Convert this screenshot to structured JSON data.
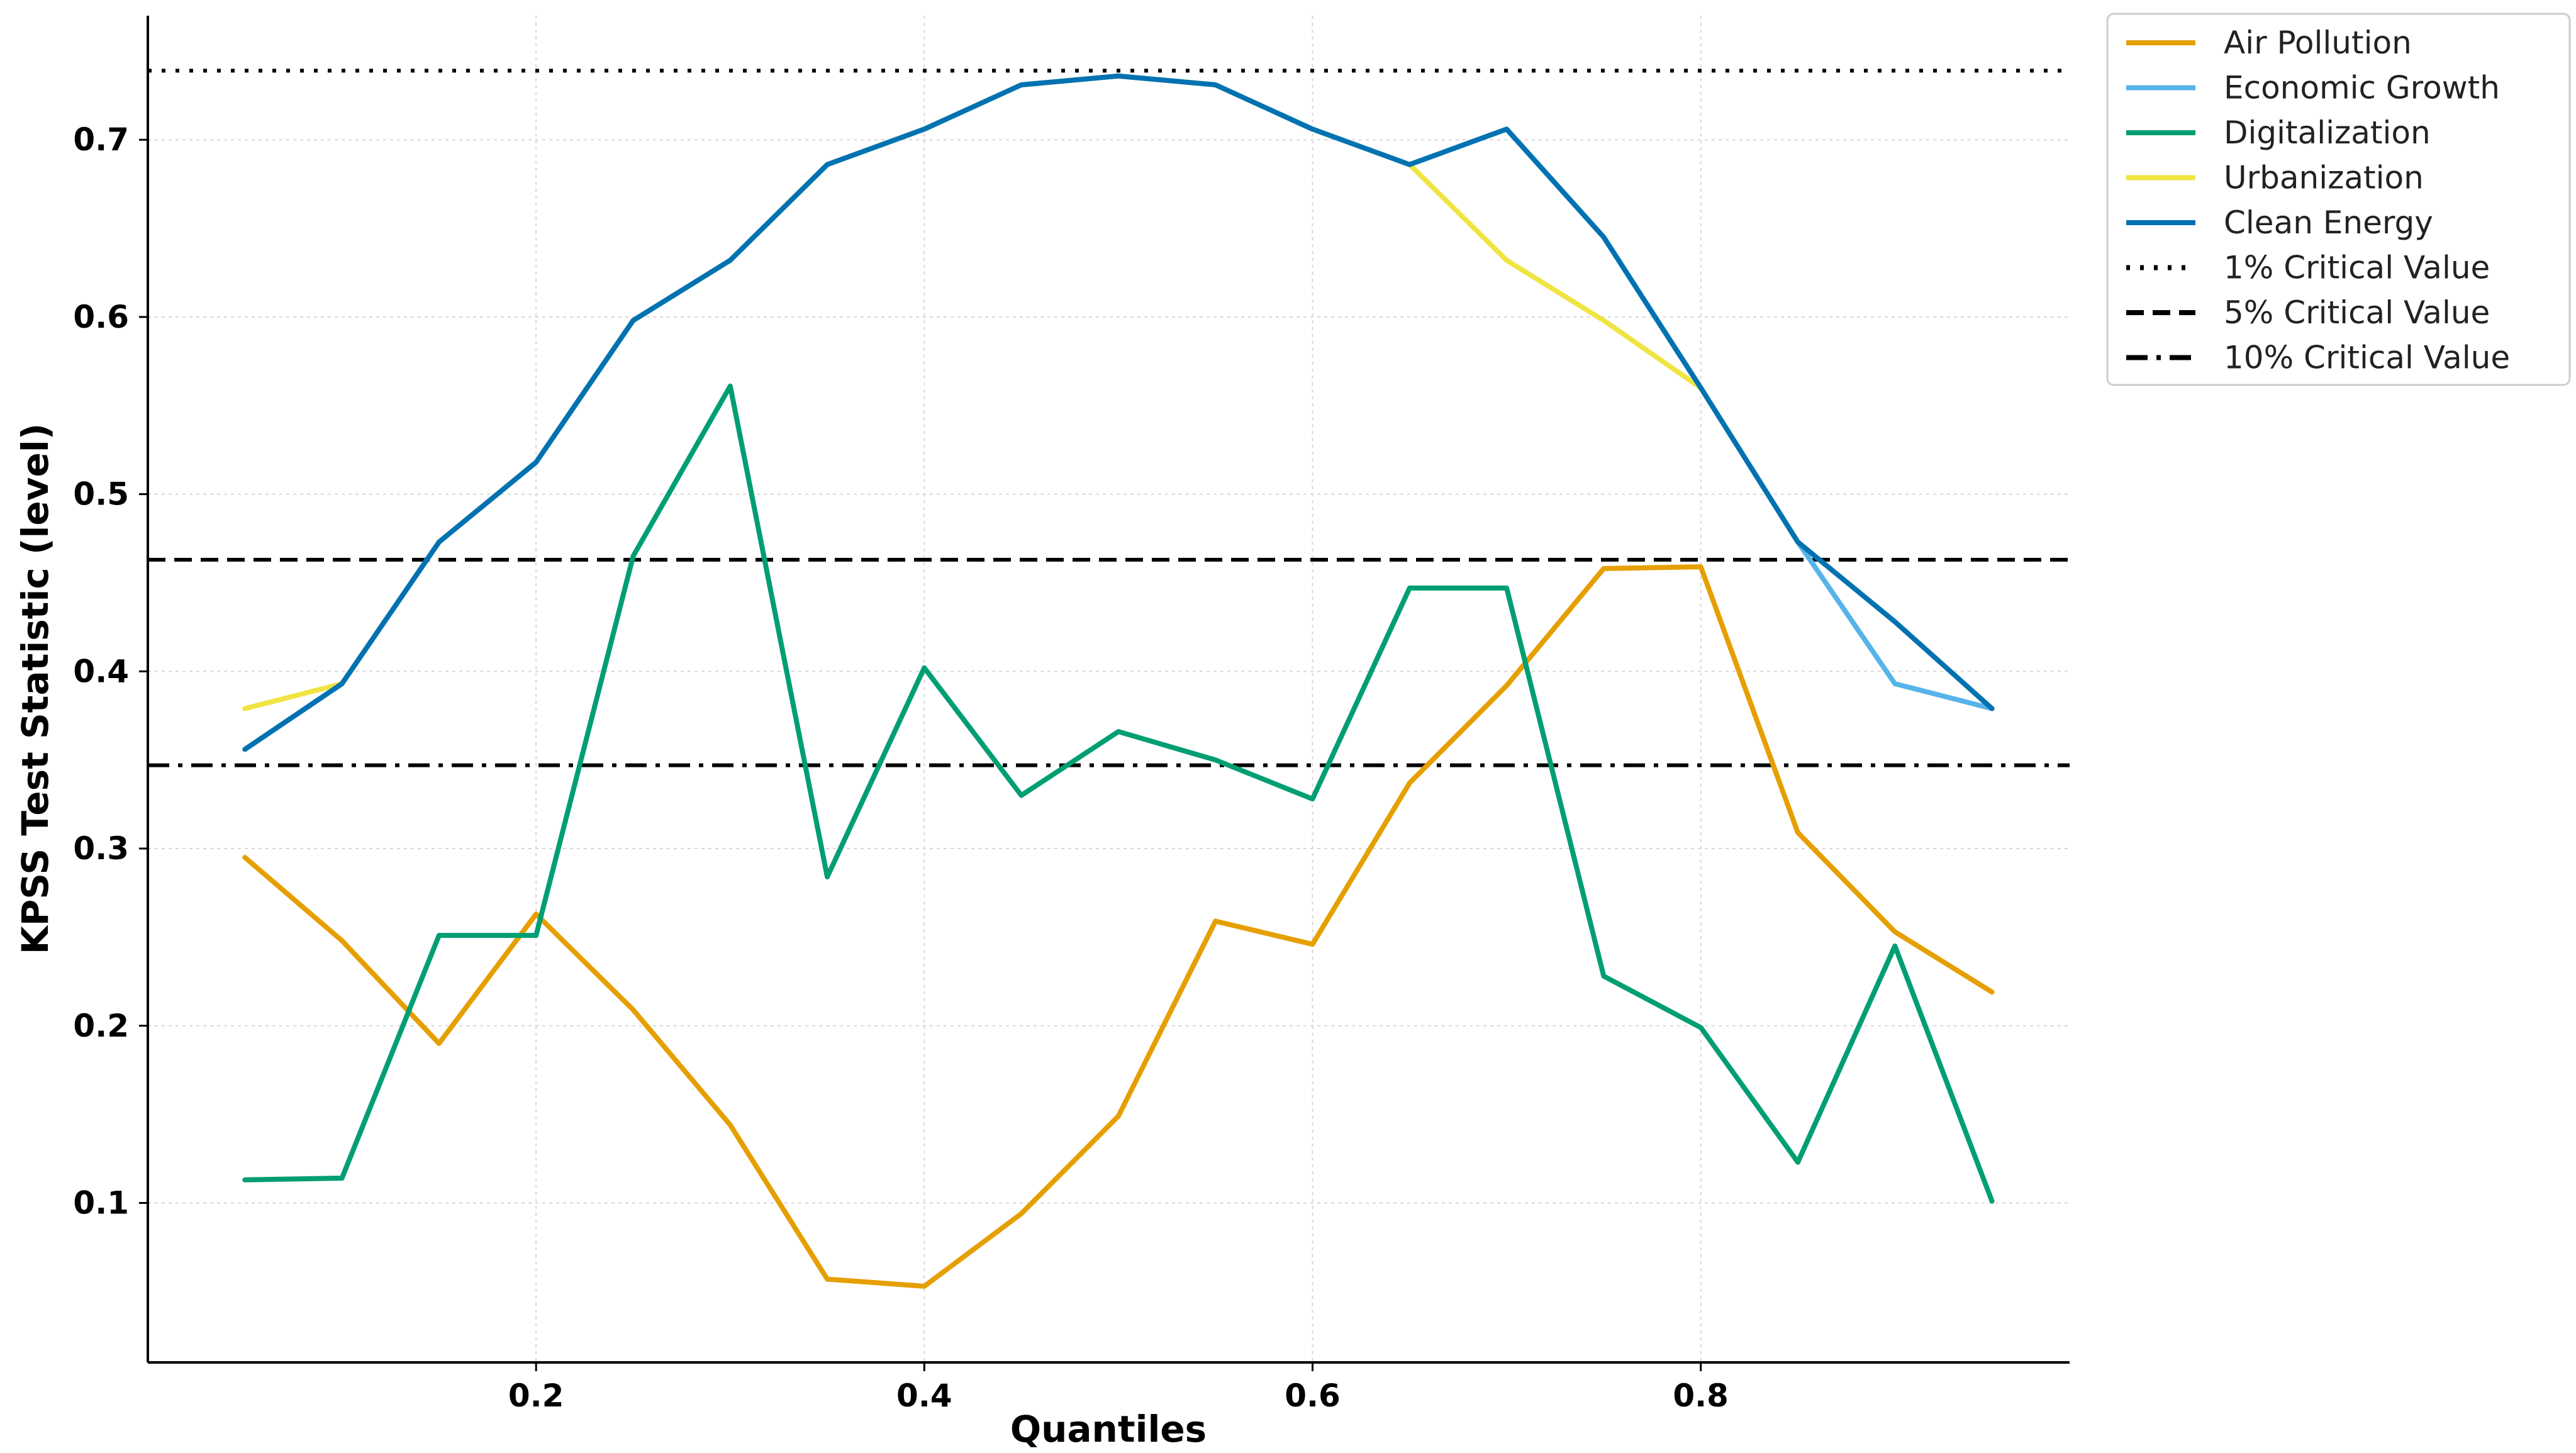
{
  "chart_data": {
    "type": "line",
    "xlabel": "Quantiles",
    "ylabel": "KPSS Test Statistic (level)",
    "xlim": [
      0.0,
      0.99
    ],
    "ylim": [
      0.01,
      0.77
    ],
    "xticks": [
      0.2,
      0.4,
      0.6,
      0.8
    ],
    "yticks": [
      0.1,
      0.2,
      0.3,
      0.4,
      0.5,
      0.6,
      0.7
    ],
    "xtick_labels": [
      "0.2",
      "0.4",
      "0.6",
      "0.8"
    ],
    "ytick_labels": [
      "0.1",
      "0.2",
      "0.3",
      "0.4",
      "0.5",
      "0.6",
      "0.7"
    ],
    "grid": true,
    "legend_position": "top-right, outside plot",
    "x": [
      0.05,
      0.1,
      0.15,
      0.2,
      0.25,
      0.3,
      0.35,
      0.4,
      0.45,
      0.5,
      0.55,
      0.6,
      0.65,
      0.7,
      0.75,
      0.8,
      0.85,
      0.9,
      0.95
    ],
    "series": [
      {
        "name": "Air Pollution",
        "color": "#E69F00",
        "values": [
          0.295,
          0.248,
          0.19,
          0.263,
          0.209,
          0.144,
          0.057,
          0.053,
          0.094,
          0.149,
          0.259,
          0.246,
          0.337,
          0.392,
          0.458,
          0.459,
          0.309,
          0.253,
          0.219
        ]
      },
      {
        "name": "Economic Growth",
        "color": "#56B4E9",
        "values": [
          0.356,
          0.393,
          0.473,
          0.518,
          0.598,
          0.632,
          0.686,
          0.706,
          0.731,
          0.736,
          0.731,
          0.706,
          0.686,
          0.706,
          0.645,
          0.56,
          0.473,
          0.393,
          0.379
        ]
      },
      {
        "name": "Digitalization",
        "color": "#009E73",
        "values": [
          0.113,
          0.114,
          0.251,
          0.251,
          0.465,
          0.561,
          0.284,
          0.402,
          0.33,
          0.366,
          0.35,
          0.328,
          0.447,
          0.447,
          0.228,
          0.199,
          0.123,
          0.245,
          0.101
        ]
      },
      {
        "name": "Urbanization",
        "color": "#F0E442",
        "values": [
          0.379,
          0.393,
          0.473,
          0.518,
          0.598,
          0.632,
          0.686,
          0.706,
          0.731,
          0.736,
          0.731,
          0.706,
          0.686,
          0.632,
          0.598,
          0.56,
          0.473,
          0.428,
          0.379
        ]
      },
      {
        "name": "Clean Energy",
        "color": "#0072B2",
        "values": [
          0.356,
          0.393,
          0.473,
          0.518,
          0.598,
          0.632,
          0.686,
          0.706,
          0.731,
          0.736,
          0.731,
          0.706,
          0.686,
          0.706,
          0.645,
          0.56,
          0.473,
          0.428,
          0.379
        ]
      }
    ],
    "reference_lines": [
      {
        "name": "1% Critical Value",
        "value": 0.739,
        "style": "dotted",
        "color": "#000000"
      },
      {
        "name": "5% Critical Value",
        "value": 0.463,
        "style": "dashed",
        "color": "#000000"
      },
      {
        "name": "10% Critical Value",
        "value": 0.347,
        "style": "dashdot",
        "color": "#000000"
      }
    ]
  }
}
